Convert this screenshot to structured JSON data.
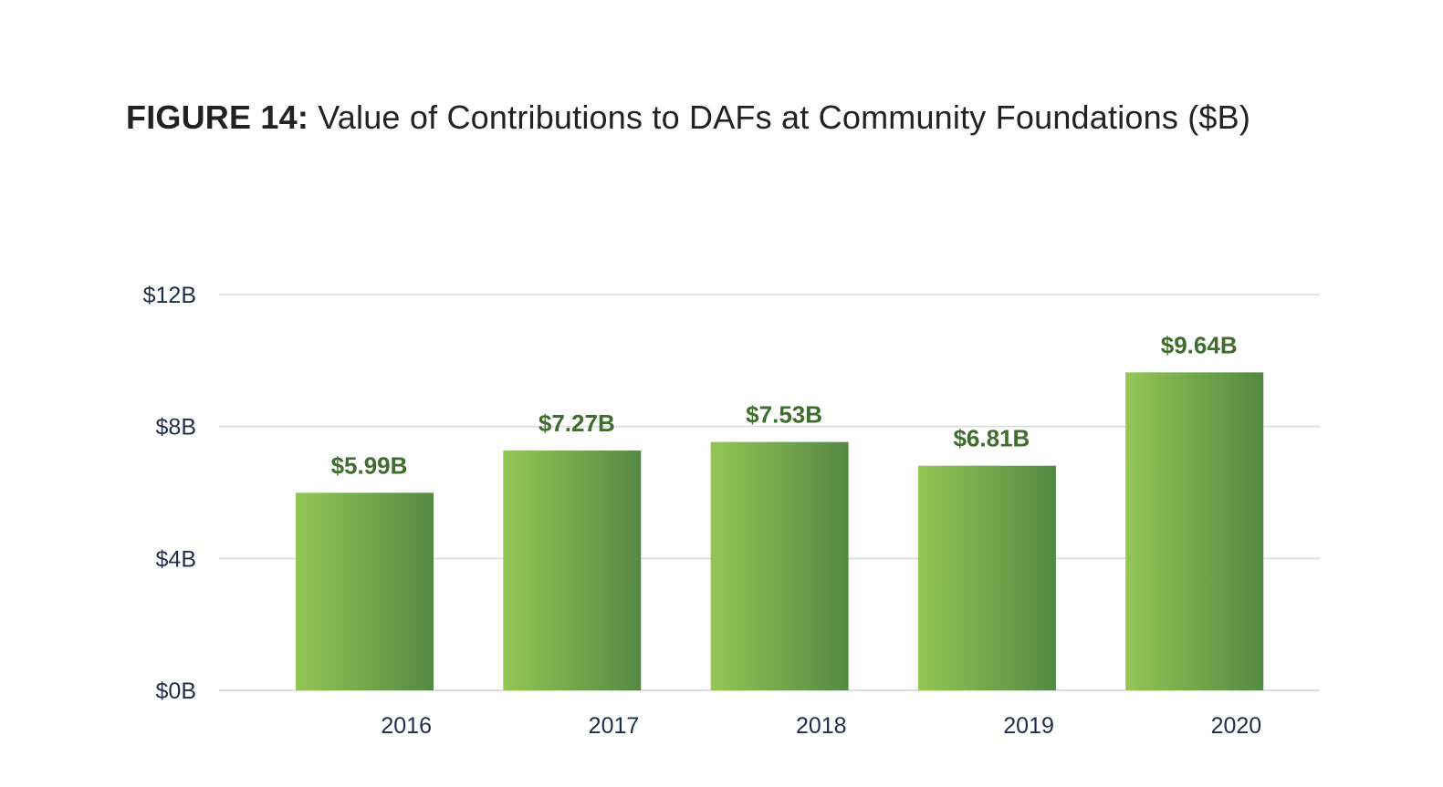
{
  "title": {
    "label": "FIGURE 14:",
    "text": "Value of Contributions to DAFs at Community Foundations ($B)"
  },
  "colors": {
    "bar_light": "#93c655",
    "bar_dark": "#548943",
    "data_label": "#3f6d2e",
    "grid": "#d9d9d9",
    "tick_text": "#1f2d4d"
  },
  "chart_data": {
    "type": "bar",
    "title": "Value of Contributions to DAFs at Community Foundations ($B)",
    "categories": [
      "2016",
      "2017",
      "2018",
      "2019",
      "2020"
    ],
    "values": [
      5.99,
      7.27,
      7.53,
      6.81,
      9.64
    ],
    "data_labels": [
      "$5.99B",
      "$7.27B",
      "$7.53B",
      "$6.81B",
      "$9.64B"
    ],
    "xlabel": "",
    "ylabel": "",
    "ylim": [
      0,
      12
    ],
    "yticks": [
      0,
      4,
      8,
      12
    ],
    "ytick_labels": [
      "$0B",
      "$4B",
      "$8B",
      "$12B"
    ],
    "grid": true,
    "legend": "none"
  }
}
